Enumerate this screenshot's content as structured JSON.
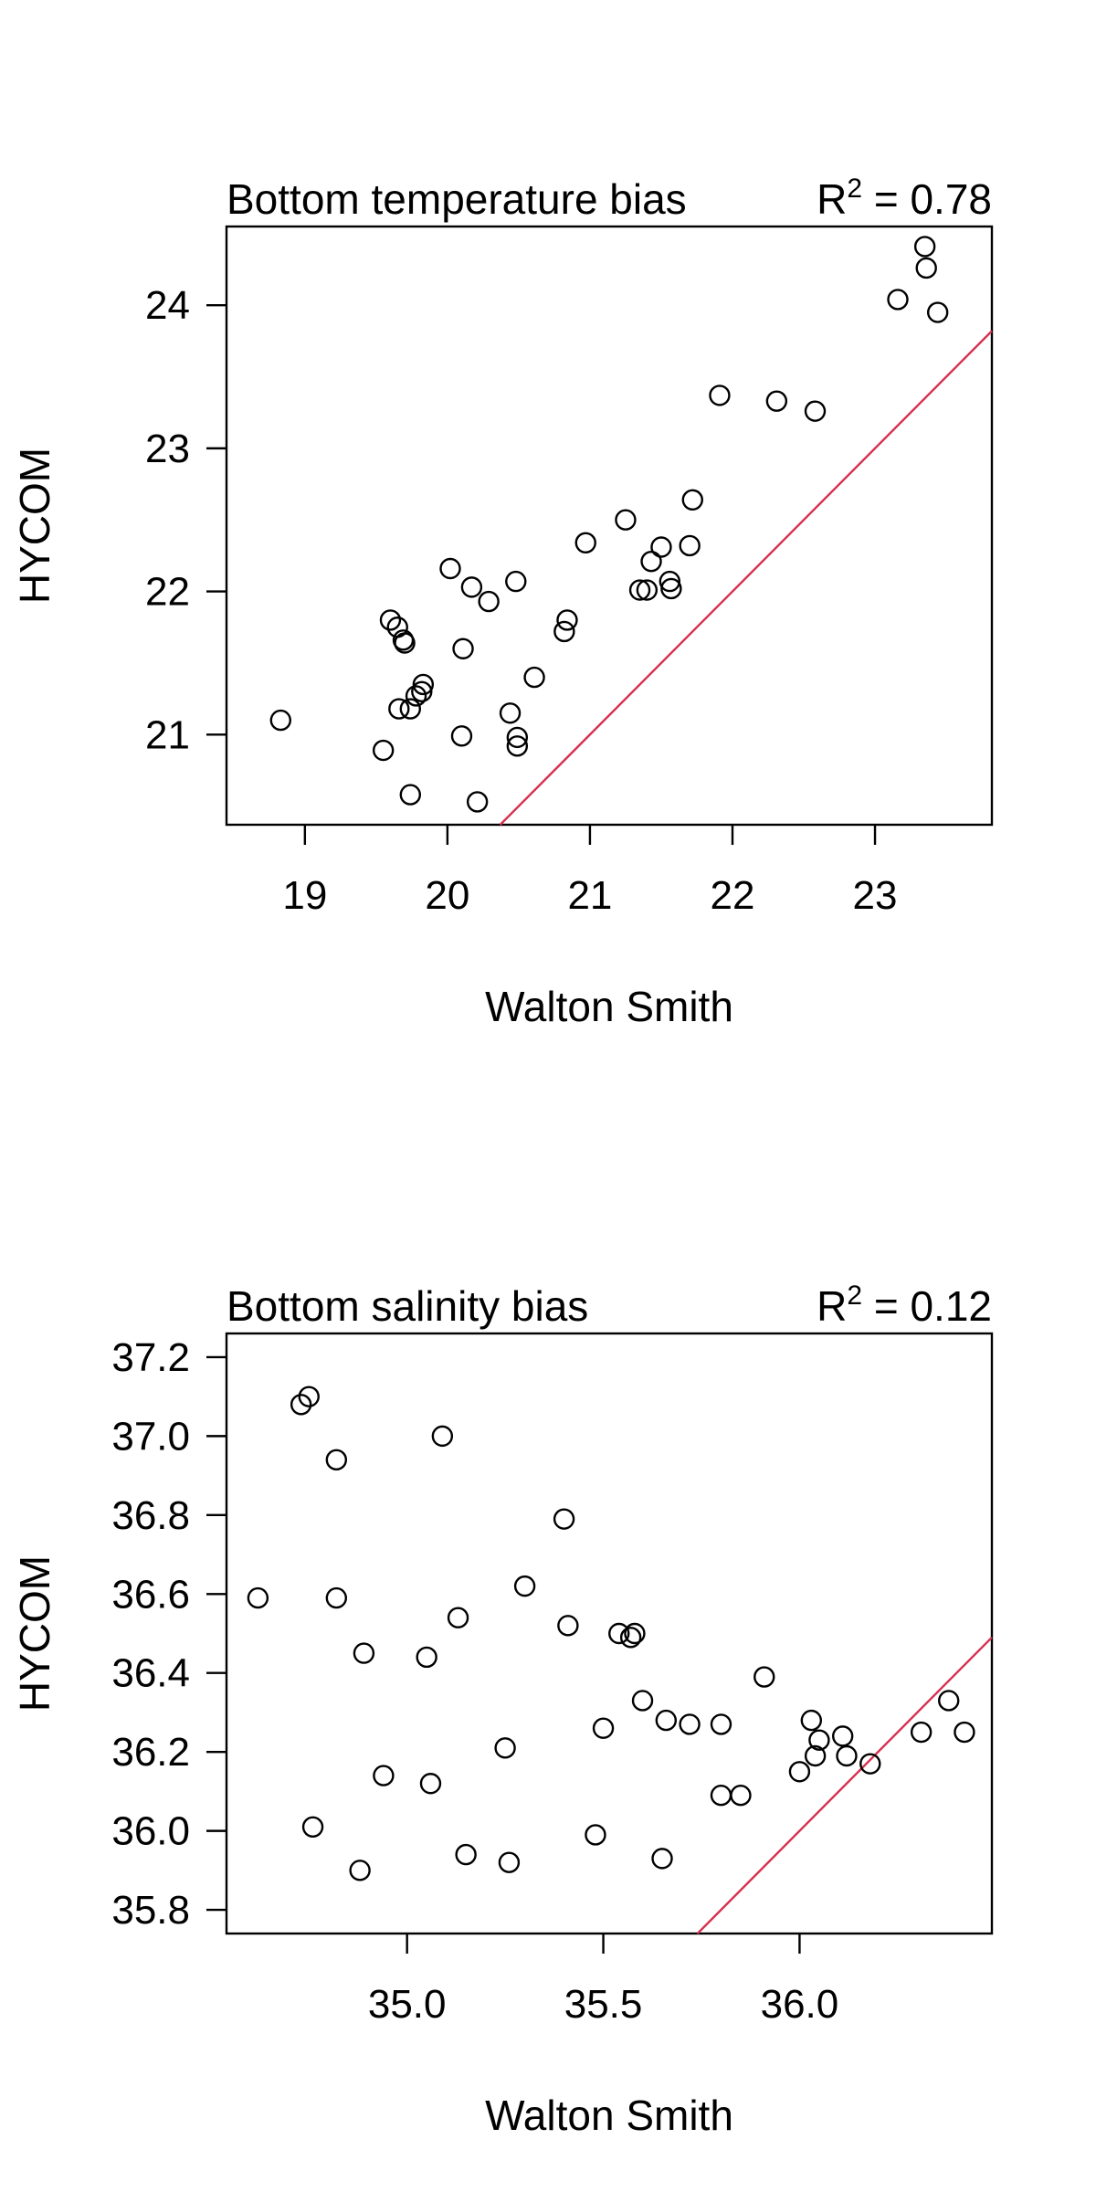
{
  "chart_data": [
    {
      "type": "scatter",
      "title": "Bottom temperature bias",
      "r2_label": "R",
      "r2_sup": "2",
      "r2_value": " = 0.78",
      "xlabel": "Walton Smith",
      "ylabel": "HYCOM",
      "xlim": [
        18.45,
        23.82
      ],
      "ylim": [
        20.37,
        24.55
      ],
      "xticks": [
        19,
        20,
        21,
        22,
        23
      ],
      "yticks": [
        21,
        22,
        23,
        24
      ],
      "xtick_labels": [
        "19",
        "20",
        "21",
        "22",
        "23"
      ],
      "ytick_labels": [
        "21",
        "22",
        "23",
        "24"
      ],
      "reference_line": "y = x",
      "line_color": "#d6304f",
      "points": [
        [
          18.83,
          21.1
        ],
        [
          19.55,
          20.89
        ],
        [
          19.6,
          21.8
        ],
        [
          19.65,
          21.75
        ],
        [
          19.66,
          21.18
        ],
        [
          19.69,
          21.66
        ],
        [
          19.7,
          21.64
        ],
        [
          19.74,
          21.18
        ],
        [
          19.74,
          20.58
        ],
        [
          19.78,
          21.27
        ],
        [
          19.82,
          21.3
        ],
        [
          19.83,
          21.35
        ],
        [
          20.02,
          22.16
        ],
        [
          20.1,
          20.99
        ],
        [
          20.11,
          21.6
        ],
        [
          20.17,
          22.03
        ],
        [
          20.21,
          20.53
        ],
        [
          20.29,
          21.93
        ],
        [
          20.44,
          21.15
        ],
        [
          20.48,
          22.07
        ],
        [
          20.49,
          20.98
        ],
        [
          20.49,
          20.92
        ],
        [
          20.61,
          21.4
        ],
        [
          20.82,
          21.72
        ],
        [
          20.84,
          21.8
        ],
        [
          20.97,
          22.34
        ],
        [
          21.25,
          22.5
        ],
        [
          21.35,
          22.01
        ],
        [
          21.4,
          22.01
        ],
        [
          21.43,
          22.21
        ],
        [
          21.5,
          22.31
        ],
        [
          21.56,
          22.07
        ],
        [
          21.57,
          22.02
        ],
        [
          21.7,
          22.32
        ],
        [
          21.72,
          22.64
        ],
        [
          21.91,
          23.37
        ],
        [
          22.31,
          23.33
        ],
        [
          22.58,
          23.26
        ],
        [
          23.16,
          24.04
        ],
        [
          23.35,
          24.41
        ],
        [
          23.36,
          24.26
        ],
        [
          23.44,
          23.95
        ]
      ]
    },
    {
      "type": "scatter",
      "title": "Bottom salinity bias",
      "r2_label": "R",
      "r2_sup": "2",
      "r2_value": " = 0.12",
      "xlabel": "Walton Smith",
      "ylabel": "HYCOM",
      "xlim": [
        34.54,
        36.49
      ],
      "ylim": [
        35.74,
        37.26
      ],
      "xticks": [
        35.0,
        35.5,
        36.0
      ],
      "yticks": [
        35.8,
        36.0,
        36.2,
        36.4,
        36.6,
        36.8,
        37.0,
        37.2
      ],
      "xtick_labels": [
        "35.0",
        "35.5",
        "36.0"
      ],
      "ytick_labels": [
        "35.8",
        "36.0",
        "36.2",
        "36.4",
        "36.6",
        "36.8",
        "37.0",
        "37.2"
      ],
      "reference_line": "y = x",
      "line_color": "#d6304f",
      "points": [
        [
          34.62,
          36.59
        ],
        [
          34.73,
          37.08
        ],
        [
          34.75,
          37.1
        ],
        [
          34.76,
          36.01
        ],
        [
          34.82,
          36.94
        ],
        [
          34.82,
          36.59
        ],
        [
          34.88,
          35.9
        ],
        [
          34.89,
          36.45
        ],
        [
          34.94,
          36.14
        ],
        [
          35.05,
          36.44
        ],
        [
          35.06,
          36.12
        ],
        [
          35.09,
          37.0
        ],
        [
          35.13,
          36.54
        ],
        [
          35.15,
          35.94
        ],
        [
          35.25,
          36.21
        ],
        [
          35.26,
          35.92
        ],
        [
          35.3,
          36.62
        ],
        [
          35.4,
          36.79
        ],
        [
          35.41,
          36.52
        ],
        [
          35.48,
          35.99
        ],
        [
          35.5,
          36.26
        ],
        [
          35.54,
          36.5
        ],
        [
          35.57,
          36.49
        ],
        [
          35.58,
          36.5
        ],
        [
          35.6,
          36.33
        ],
        [
          35.65,
          35.93
        ],
        [
          35.66,
          36.28
        ],
        [
          35.72,
          36.27
        ],
        [
          35.8,
          36.27
        ],
        [
          35.8,
          36.09
        ],
        [
          35.85,
          36.09
        ],
        [
          35.91,
          36.39
        ],
        [
          36.0,
          36.15
        ],
        [
          36.03,
          36.28
        ],
        [
          36.04,
          36.19
        ],
        [
          36.05,
          36.23
        ],
        [
          36.11,
          36.24
        ],
        [
          36.12,
          36.19
        ],
        [
          36.18,
          36.17
        ],
        [
          36.31,
          36.25
        ],
        [
          36.38,
          36.33
        ],
        [
          36.42,
          36.25
        ]
      ]
    }
  ]
}
